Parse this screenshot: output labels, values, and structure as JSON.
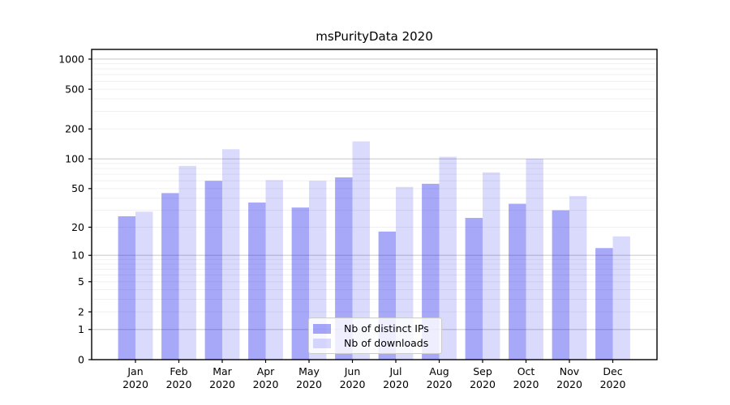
{
  "chart_data": {
    "type": "bar",
    "title": "msPurityData 2020",
    "categories": [
      "Jan",
      "Feb",
      "Mar",
      "Apr",
      "May",
      "Jun",
      "Jul",
      "Aug",
      "Sep",
      "Oct",
      "Nov",
      "Dec"
    ],
    "x_year_label": "2020",
    "series": [
      {
        "name": "Nb of distinct IPs",
        "color": "rgba(5,5,235,0.35)",
        "values": [
          26,
          45,
          60,
          36,
          32,
          65,
          18,
          56,
          25,
          35,
          30,
          12
        ]
      },
      {
        "name": "Nb of downloads",
        "color": "rgba(5,5,235,0.15)",
        "values": [
          29,
          85,
          125,
          61,
          60,
          150,
          52,
          105,
          73,
          100,
          42,
          16
        ]
      }
    ],
    "yscale": "log1p",
    "ylim": [
      0,
      1250
    ],
    "y_ticks": [
      0,
      1,
      2,
      5,
      10,
      20,
      50,
      100,
      200,
      500,
      1000
    ],
    "y_major_grid": [
      1,
      10,
      100,
      1000
    ],
    "grid": true,
    "legend_position": "lower center",
    "colors": {
      "major_grid": "#cdcdcd",
      "minor_grid": "#f0f0f0",
      "axis": "#000000",
      "text": "#000000"
    }
  }
}
